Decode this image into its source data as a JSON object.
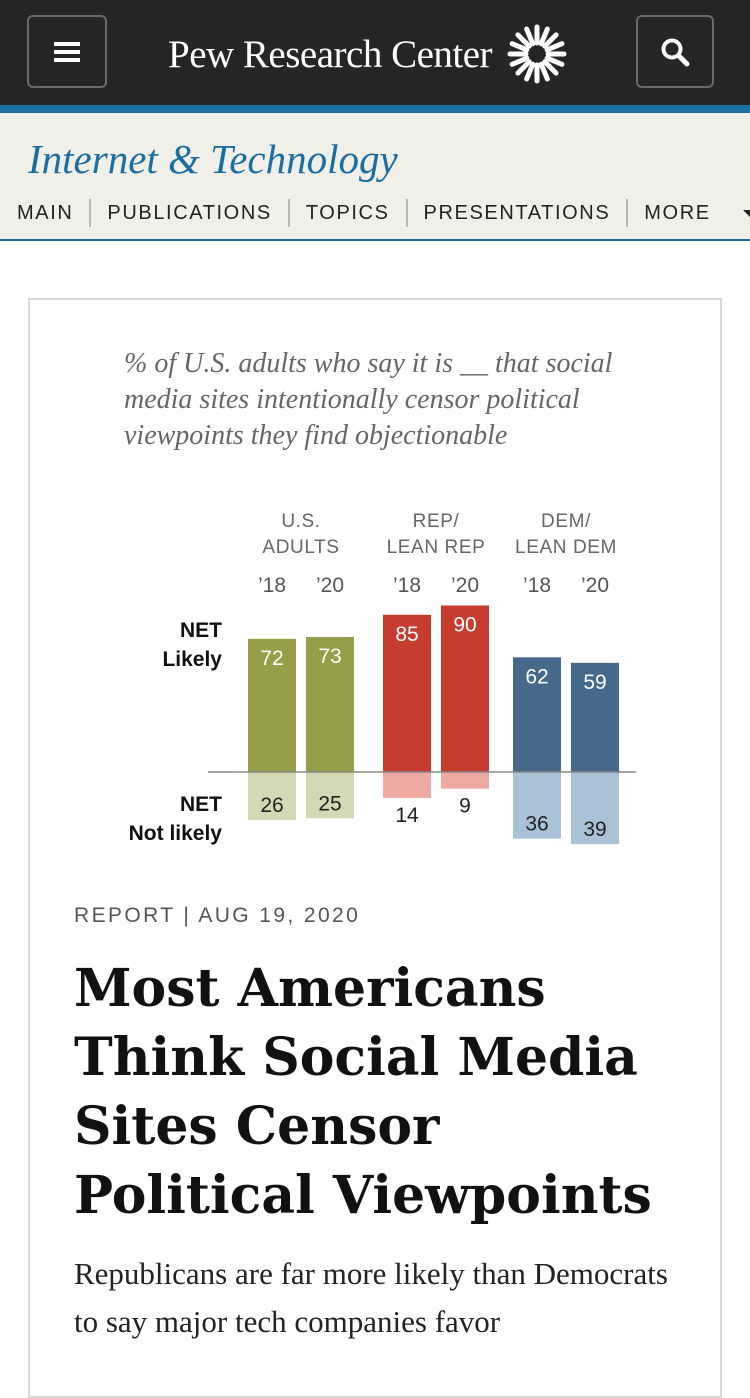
{
  "header": {
    "brand": "Pew Research Center",
    "menu_icon": "hamburger-icon",
    "search_icon": "search-icon"
  },
  "subheader": {
    "section_title": "Internet & Technology",
    "nav": [
      "MAIN",
      "PUBLICATIONS",
      "TOPICS",
      "PRESENTATIONS",
      "MORE"
    ]
  },
  "chart": {
    "subtitle": "% of U.S. adults who say it is __ that social media sites intentionally censor political viewpoints they find objectionable",
    "row_labels": {
      "likely": [
        "NET",
        "Likely"
      ],
      "not_likely": [
        "NET",
        "Not likely"
      ]
    }
  },
  "chart_data": {
    "type": "bar",
    "groups": [
      {
        "label": [
          "U.S.",
          "ADULTS"
        ],
        "years": [
          "’18",
          "’20"
        ],
        "likely": [
          72,
          73
        ],
        "not_likely": [
          26,
          25
        ],
        "color_likely": "#969e4a",
        "color_not": "#d3d9b3"
      },
      {
        "label": [
          "REP/",
          "LEAN REP"
        ],
        "years": [
          "’18",
          "’20"
        ],
        "likely": [
          85,
          90
        ],
        "not_likely": [
          14,
          9
        ],
        "color_likely": "#c63c2f",
        "color_not": "#eeaaa1"
      },
      {
        "label": [
          "DEM/",
          "LEAN DEM"
        ],
        "years": [
          "’18",
          "’20"
        ],
        "likely": [
          62,
          59
        ],
        "not_likely": [
          36,
          39
        ],
        "color_likely": "#44698a",
        "color_not": "#a9c2d8"
      }
    ]
  },
  "article": {
    "meta": "REPORT | AUG 19, 2020",
    "headline": "Most Americans Think Social Media Sites Censor Political Viewpoints",
    "deck": "Republicans are far more likely than Democrats to say major tech companies favor"
  }
}
